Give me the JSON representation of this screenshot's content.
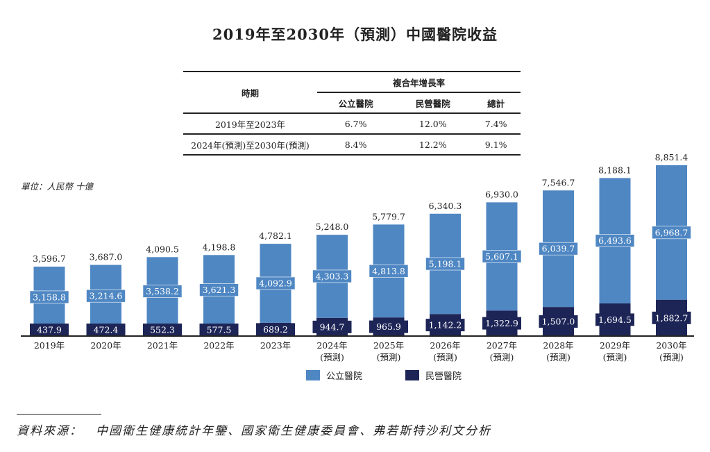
{
  "title": "2019年至2030年（預測）中國醫院收益",
  "cagr_table": {
    "period_header": "時期",
    "group_header": "複合年增長率",
    "columns": [
      "公立醫院",
      "民營醫院",
      "總計"
    ],
    "rows": [
      {
        "period": "2019年至2023年",
        "values": [
          "6.7%",
          "12.0%",
          "7.4%"
        ]
      },
      {
        "period": "2024年(預測)至2030年(預測)",
        "values": [
          "8.4%",
          "12.2%",
          "9.1%"
        ]
      }
    ]
  },
  "unit": "單位：人民幣 十億",
  "source": "資料來源：　中國衛生健康統計年鑒、國家衛生健康委員會、弗若斯特沙利文分析",
  "chart_data": {
    "type": "bar",
    "stacked": true,
    "categories": [
      "2019年",
      "2020年",
      "2021年",
      "2022年",
      "2023年",
      "2024年\n(預測)",
      "2025年\n(預測)",
      "2026年\n(預測)",
      "2027年\n(預測)",
      "2028年\n(預測)",
      "2029年\n(預測)",
      "2030年\n(預測)"
    ],
    "series": [
      {
        "name": "民營醫院",
        "color": "#1d2557",
        "values": [
          437.9,
          472.4,
          552.3,
          577.5,
          689.2,
          944.7,
          965.9,
          1142.2,
          1322.9,
          1507.0,
          1694.5,
          1882.7
        ],
        "labels": [
          "437.9",
          "472.4",
          "552.3",
          "577.5",
          "689.2",
          "944.7",
          "965.9",
          "1,142.2",
          "1,322.9",
          "1,507.0",
          "1,694.5",
          "1,882.7"
        ]
      },
      {
        "name": "公立醫院",
        "color": "#4f87c3",
        "values": [
          3158.8,
          3214.6,
          3538.2,
          3621.3,
          4092.9,
          4303.3,
          4813.8,
          5198.1,
          5607.1,
          6039.7,
          6493.6,
          6968.7
        ],
        "labels": [
          "3,158.8",
          "3,214.6",
          "3,538.2",
          "3,621.3",
          "4,092.9",
          "4,303.3",
          "4,813.8",
          "5,198.1",
          "5,607.1",
          "6,039.7",
          "6,493.6",
          "6,968.7"
        ]
      }
    ],
    "totals": [
      "3,596.7",
      "3,687.0",
      "4,090.5",
      "4,198.8",
      "4,782.1",
      "5,248.0",
      "5,779.7",
      "6,340.3",
      "6,930.0",
      "7,546.7",
      "8,188.1",
      "8,851.4"
    ],
    "legend": [
      "公立醫院",
      "民營醫院"
    ],
    "legend_position": "bottom",
    "grid": false
  }
}
